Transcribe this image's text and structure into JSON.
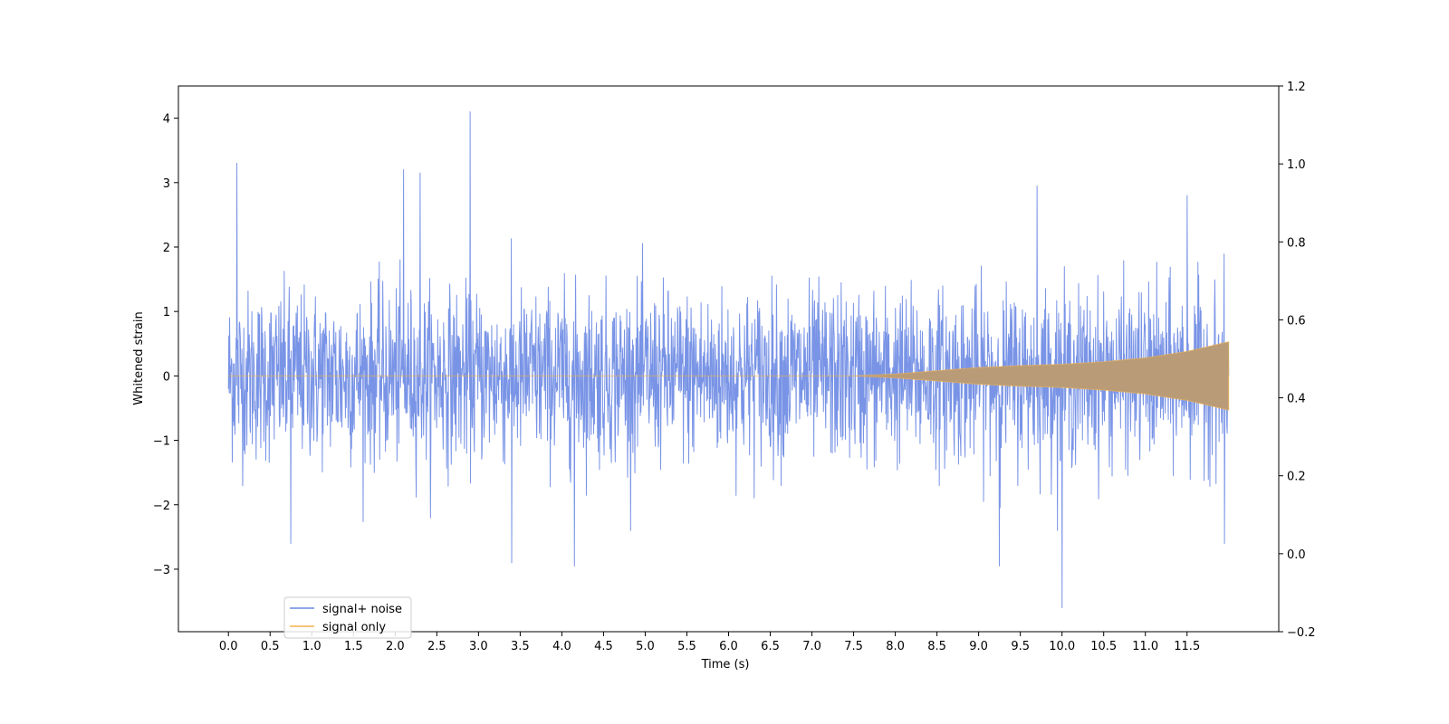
{
  "chart_data": {
    "type": "line",
    "title": "",
    "xlabel": "Time (s)",
    "ylabel": "Whitened strain",
    "ylabel_right": "",
    "xlim": [
      -0.6,
      12.6
    ],
    "ylim": [
      -3.97,
      4.5
    ],
    "ylim_right": [
      -0.2,
      1.2
    ],
    "x_ticks": [
      "0.0",
      "0.5",
      "1.0",
      "1.5",
      "2.0",
      "2.5",
      "3.0",
      "3.5",
      "4.0",
      "4.5",
      "5.0",
      "5.5",
      "6.0",
      "6.5",
      "7.0",
      "7.5",
      "8.0",
      "8.5",
      "9.0",
      "9.5",
      "10.0",
      "10.5",
      "11.0",
      "11.5"
    ],
    "y_ticks": [
      "4",
      "3",
      "2",
      "1",
      "0",
      "−1",
      "−2",
      "−3"
    ],
    "y_ticks_right": [
      "1.2",
      "1.0",
      "0.8",
      "0.6",
      "0.4",
      "0.2",
      "0.0",
      "−0.2"
    ],
    "grid": false,
    "legend_position": "lower-left",
    "series": [
      {
        "name": "signal+ noise",
        "color": "#6a88e3",
        "x_range": [
          0.0,
          12.0
        ],
        "typical_amplitude": 1.3,
        "peaks": [
          {
            "x": 0.1,
            "y": 3.3
          },
          {
            "x": 2.1,
            "y": 3.2
          },
          {
            "x": 2.3,
            "y": 3.15
          },
          {
            "x": 2.9,
            "y": 4.1
          },
          {
            "x": 9.7,
            "y": 2.95
          },
          {
            "x": 11.5,
            "y": 2.8
          }
        ],
        "troughs": [
          {
            "x": 0.75,
            "y": -2.6
          },
          {
            "x": 3.4,
            "y": -2.9
          },
          {
            "x": 4.15,
            "y": -2.95
          },
          {
            "x": 9.25,
            "y": -2.95
          },
          {
            "x": 10.0,
            "y": -3.6
          },
          {
            "x": 11.95,
            "y": -2.6
          }
        ]
      },
      {
        "name": "signal only",
        "color": "#f5b04b",
        "envelope": {
          "x": [
            0.0,
            7.5,
            8.0,
            8.5,
            9.0,
            9.5,
            10.0,
            10.5,
            11.0,
            11.5,
            12.0
          ],
          "amplitude": [
            0.0,
            0.0,
            0.03,
            0.08,
            0.13,
            0.16,
            0.18,
            0.22,
            0.28,
            0.38,
            0.53
          ]
        }
      }
    ],
    "legend": {
      "items": [
        {
          "label": "signal+ noise",
          "color": "#6a88e3"
        },
        {
          "label": "signal only",
          "color": "#f5b04b"
        }
      ]
    }
  }
}
